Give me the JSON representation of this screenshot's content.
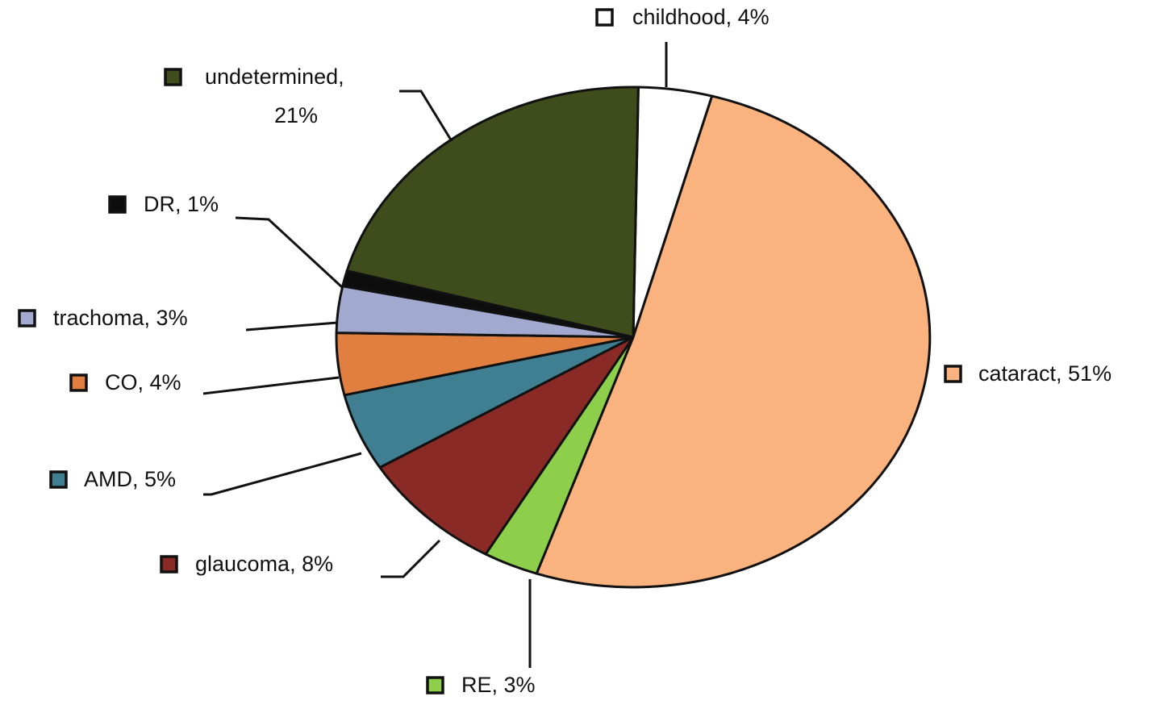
{
  "chart_data": {
    "type": "pie",
    "title": "",
    "slices": [
      {
        "name": "childhood",
        "value": 4,
        "label": "childhood,  4%",
        "color": "#ffffff"
      },
      {
        "name": "cataract",
        "value": 51,
        "label": "cataract, 51%",
        "color": "#fab27e"
      },
      {
        "name": "RE",
        "value": 3,
        "label": "RE, 3%",
        "color": "#8dcf4a"
      },
      {
        "name": "glaucoma",
        "value": 8,
        "label": "glaucoma, 8%",
        "color": "#8a2a26"
      },
      {
        "name": "AMD",
        "value": 5,
        "label": "AMD, 5%",
        "color": "#3f7f91"
      },
      {
        "name": "CO",
        "value": 4,
        "label": "CO, 4%",
        "color": "#e07f3f"
      },
      {
        "name": "trachoma",
        "value": 3,
        "label": "trachoma, 3%",
        "color": "#a2a9cf"
      },
      {
        "name": "DR",
        "value": 1,
        "label": "DR, 1%",
        "color": "#0d0d0d"
      },
      {
        "name": "undetermined",
        "value": 21,
        "label": "undetermined,\n21%",
        "color": "#3f4c1c"
      }
    ],
    "legend": "labels beside slices with leader lines"
  }
}
